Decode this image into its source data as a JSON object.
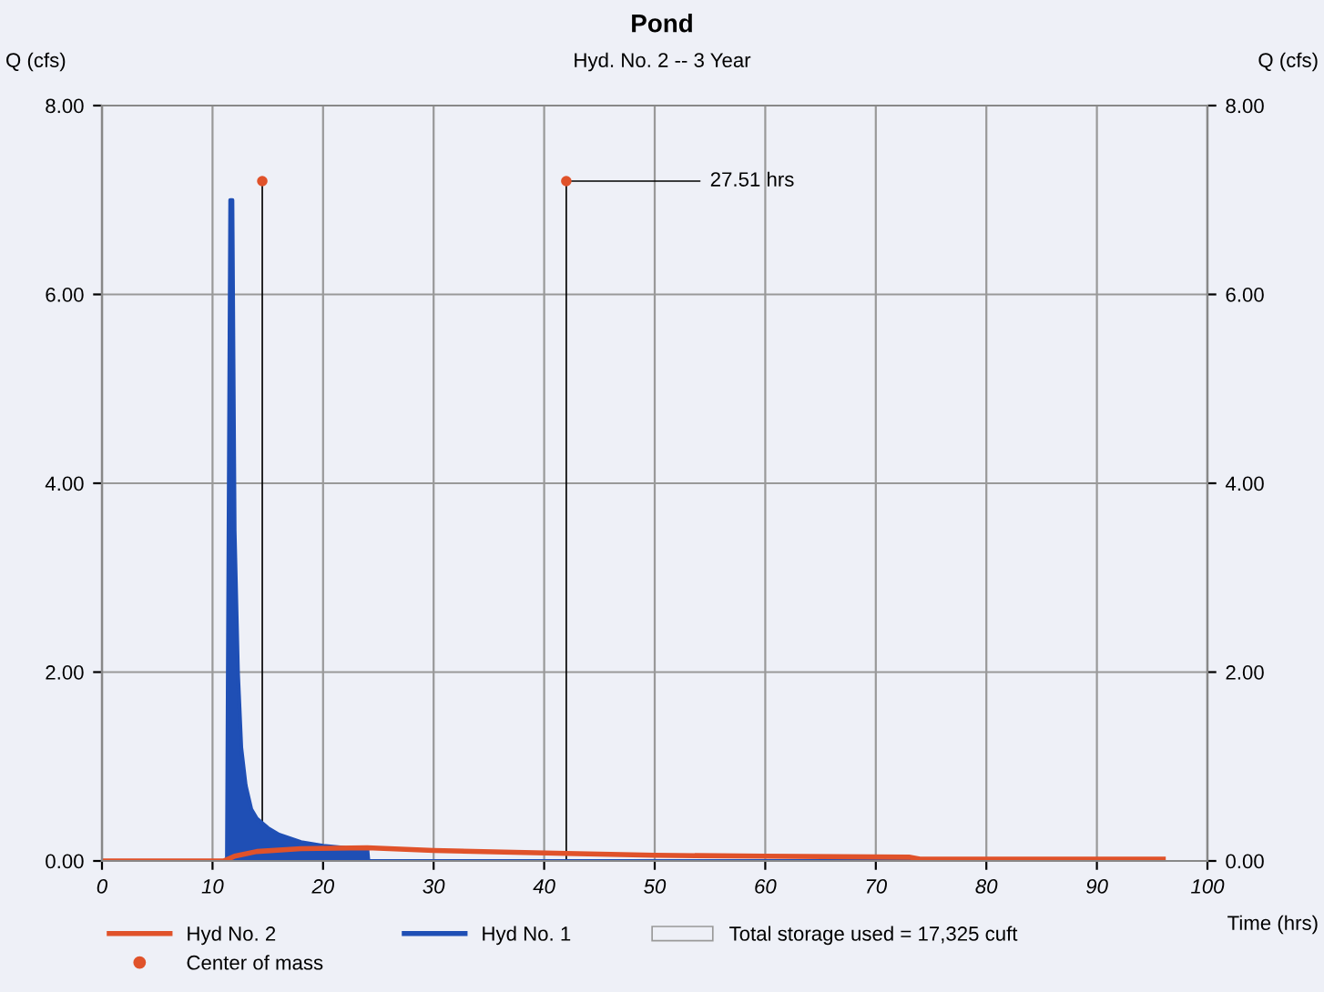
{
  "chart_data": {
    "type": "line",
    "title": "Pond",
    "subtitle": "Hyd. No. 2 -- 3 Year",
    "xlabel": "Time (hrs)",
    "ylabel": "Q (cfs)",
    "y2label": "Q (cfs)",
    "series": [
      {
        "name": "Hyd No. 2",
        "color": "#e0522a",
        "x": [
          0,
          11,
          12,
          14,
          18,
          24,
          30,
          42,
          50,
          60,
          73,
          74,
          85,
          96
        ],
        "values": [
          0,
          0,
          0.05,
          0.1,
          0.13,
          0.14,
          0.11,
          0.08,
          0.06,
          0.05,
          0.04,
          0.02,
          0.02,
          0.02
        ]
      },
      {
        "name": "Hyd No. 1",
        "color": "#1f4fb5",
        "type": "area",
        "x": [
          0,
          11,
          11.3,
          11.6,
          11.8,
          12.0,
          12.3,
          12.6,
          13,
          13.5,
          14,
          15,
          16,
          18,
          20,
          22,
          24,
          24.1,
          42,
          96
        ],
        "values": [
          0,
          0,
          0,
          7.0,
          7.0,
          3.5,
          2.0,
          1.2,
          0.8,
          0.55,
          0.45,
          0.35,
          0.28,
          0.2,
          0.16,
          0.14,
          0.13,
          0,
          0,
          0
        ]
      },
      {
        "name": "Center of mass",
        "color": "#e0522a",
        "type": "scatter",
        "marker": "circle",
        "x": [
          14.5,
          42.0
        ],
        "values": [
          7.2,
          7.2
        ]
      }
    ],
    "ref_lines": [
      {
        "axis": "x",
        "value": 14.5,
        "color": "#000000"
      },
      {
        "axis": "x",
        "value": 42.0,
        "color": "#000000"
      }
    ],
    "annotations": [
      {
        "text": "27.51 hrs",
        "x": 42.0,
        "y": 7.2
      },
      "Total storage used = 17,325 cuft"
    ],
    "xlim": [
      0,
      100
    ],
    "xticks": [
      0,
      10,
      20,
      30,
      40,
      50,
      60,
      70,
      80,
      90,
      100
    ],
    "ylim": [
      0,
      8
    ],
    "yticks": [
      {
        "value": 0,
        "label": "0.00"
      },
      {
        "value": 2,
        "label": "2.00"
      },
      {
        "value": 4,
        "label": "4.00"
      },
      {
        "value": 6,
        "label": "6.00"
      },
      {
        "value": 8,
        "label": "8.00"
      }
    ],
    "y2lim": [
      0,
      8
    ],
    "y2ticks": [
      {
        "value": 0,
        "label": "0.00"
      },
      {
        "value": 2,
        "label": "2.00"
      },
      {
        "value": 4,
        "label": "4.00"
      },
      {
        "value": 6,
        "label": "6.00"
      },
      {
        "value": 8,
        "label": "8.00"
      }
    ],
    "grid": true,
    "legend": "bottom",
    "line_style": "solid"
  }
}
